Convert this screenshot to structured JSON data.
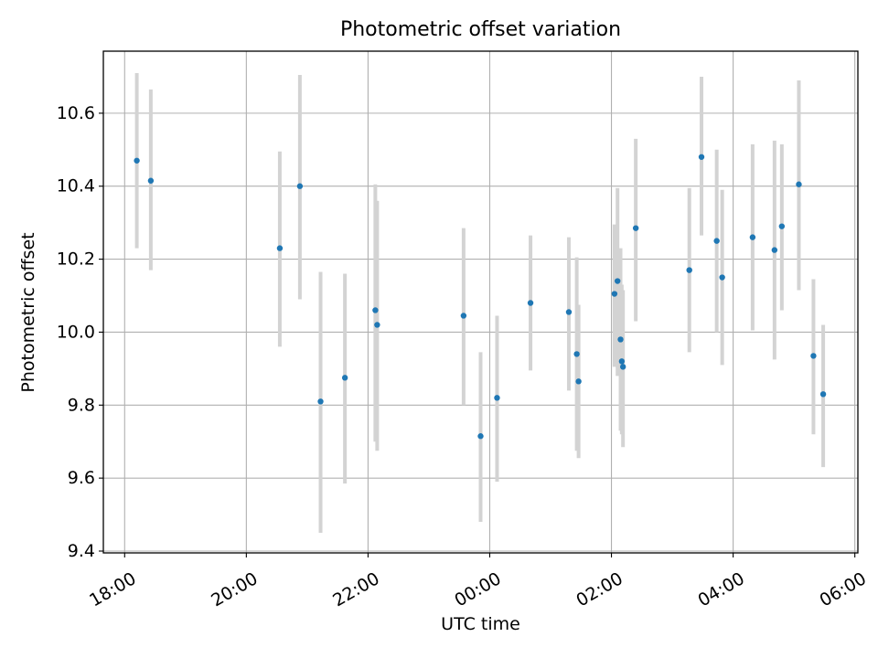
{
  "chart_data": {
    "type": "scatter",
    "title": "Photometric offset variation",
    "xlabel": "UTC time",
    "ylabel": "Photometric offset",
    "x_unit": "hours since 18:00 UTC",
    "xlim": [
      -0.35,
      12.05
    ],
    "ylim": [
      9.395,
      10.77
    ],
    "grid": true,
    "x_ticks": [
      {
        "value": 0,
        "label": "18:00"
      },
      {
        "value": 2,
        "label": "20:00"
      },
      {
        "value": 4,
        "label": "22:00"
      },
      {
        "value": 6,
        "label": "00:00"
      },
      {
        "value": 8,
        "label": "02:00"
      },
      {
        "value": 10,
        "label": "04:00"
      },
      {
        "value": 12,
        "label": "06:00"
      }
    ],
    "y_ticks": [
      {
        "value": 9.4,
        "label": "9.4"
      },
      {
        "value": 9.6,
        "label": "9.6"
      },
      {
        "value": 9.8,
        "label": "9.8"
      },
      {
        "value": 10.0,
        "label": "10.0"
      },
      {
        "value": 10.2,
        "label": "10.2"
      },
      {
        "value": 10.4,
        "label": "10.4"
      },
      {
        "value": 10.6,
        "label": "10.6"
      }
    ],
    "colors": {
      "point": "#1f77b4",
      "errorbar": "#d3d3d3",
      "grid": "#b0b0b0",
      "axis": "#000000"
    },
    "points": [
      {
        "t": 0.2,
        "y": 10.47,
        "lo": 10.23,
        "hi": 10.71
      },
      {
        "t": 0.43,
        "y": 10.415,
        "lo": 10.17,
        "hi": 10.665
      },
      {
        "t": 2.55,
        "y": 10.23,
        "lo": 9.96,
        "hi": 10.495
      },
      {
        "t": 2.88,
        "y": 10.4,
        "lo": 10.09,
        "hi": 10.705
      },
      {
        "t": 3.22,
        "y": 9.81,
        "lo": 9.45,
        "hi": 10.165
      },
      {
        "t": 3.62,
        "y": 9.875,
        "lo": 9.585,
        "hi": 10.16
      },
      {
        "t": 4.12,
        "y": 10.06,
        "lo": 9.7,
        "hi": 10.405
      },
      {
        "t": 4.15,
        "y": 10.02,
        "lo": 9.675,
        "hi": 10.36
      },
      {
        "t": 5.57,
        "y": 10.045,
        "lo": 9.8,
        "hi": 10.285
      },
      {
        "t": 5.85,
        "y": 9.715,
        "lo": 9.48,
        "hi": 9.945
      },
      {
        "t": 6.12,
        "y": 9.82,
        "lo": 9.59,
        "hi": 10.045
      },
      {
        "t": 6.67,
        "y": 10.08,
        "lo": 9.895,
        "hi": 10.265
      },
      {
        "t": 7.3,
        "y": 10.055,
        "lo": 9.84,
        "hi": 10.26
      },
      {
        "t": 7.43,
        "y": 9.94,
        "lo": 9.675,
        "hi": 10.205
      },
      {
        "t": 7.46,
        "y": 9.865,
        "lo": 9.655,
        "hi": 10.075
      },
      {
        "t": 8.05,
        "y": 10.105,
        "lo": 9.905,
        "hi": 10.295
      },
      {
        "t": 8.1,
        "y": 10.14,
        "lo": 9.88,
        "hi": 10.395
      },
      {
        "t": 8.15,
        "y": 9.98,
        "lo": 9.73,
        "hi": 10.23
      },
      {
        "t": 8.17,
        "y": 9.92,
        "lo": 9.72,
        "hi": 10.13
      },
      {
        "t": 8.19,
        "y": 9.905,
        "lo": 9.685,
        "hi": 10.115
      },
      {
        "t": 8.4,
        "y": 10.285,
        "lo": 10.03,
        "hi": 10.53
      },
      {
        "t": 9.28,
        "y": 10.17,
        "lo": 9.945,
        "hi": 10.395
      },
      {
        "t": 9.48,
        "y": 10.48,
        "lo": 10.265,
        "hi": 10.7
      },
      {
        "t": 9.73,
        "y": 10.25,
        "lo": 10.0,
        "hi": 10.5
      },
      {
        "t": 9.82,
        "y": 10.15,
        "lo": 9.91,
        "hi": 10.39
      },
      {
        "t": 10.32,
        "y": 10.26,
        "lo": 10.005,
        "hi": 10.515
      },
      {
        "t": 10.68,
        "y": 10.225,
        "lo": 9.925,
        "hi": 10.525
      },
      {
        "t": 10.8,
        "y": 10.29,
        "lo": 10.06,
        "hi": 10.515
      },
      {
        "t": 11.08,
        "y": 10.405,
        "lo": 10.115,
        "hi": 10.69
      },
      {
        "t": 11.32,
        "y": 9.935,
        "lo": 9.72,
        "hi": 10.145
      },
      {
        "t": 11.48,
        "y": 9.83,
        "lo": 9.63,
        "hi": 10.02
      }
    ]
  }
}
